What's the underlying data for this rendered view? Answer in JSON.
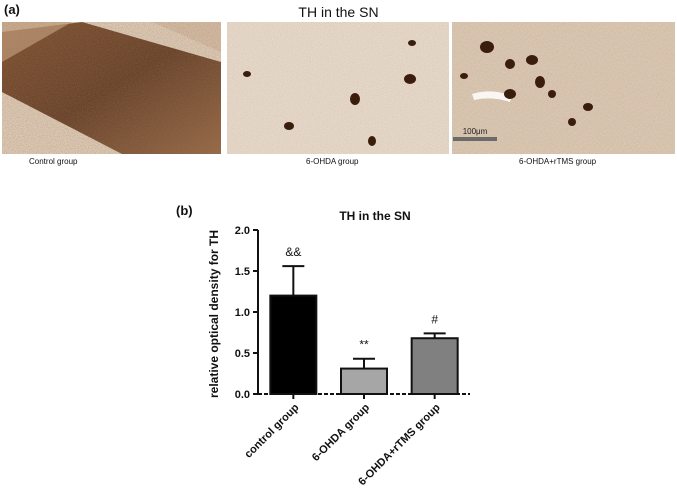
{
  "figure": {
    "panel_a_label": "(a)",
    "panel_b_label": "(b)",
    "panel_a_title": "TH in the SN",
    "images": [
      {
        "caption": "Control group",
        "staining": "dense"
      },
      {
        "caption": "6-OHDA group",
        "staining": "sparse"
      },
      {
        "caption": "6-OHDA+rTMS group",
        "staining": "moderate"
      }
    ],
    "scale_bar": "100μm"
  },
  "chart_data": {
    "type": "bar",
    "title": "TH in the SN",
    "xlabel": "",
    "ylabel": "relative optical density for TH",
    "categories": [
      "control group",
      "6-OHDA group",
      "6-OHDA+rTMS group"
    ],
    "values": [
      1.2,
      0.31,
      0.68
    ],
    "errors": [
      0.36,
      0.12,
      0.06
    ],
    "annotations": [
      "&&",
      "**",
      "#"
    ],
    "colors": [
      "#000000",
      "#a6a6a6",
      "#808080"
    ],
    "ylim": [
      0,
      2.0
    ],
    "yticks": [
      "0.0",
      "0.5",
      "1.0",
      "1.5",
      "2.0"
    ],
    "grid": false
  }
}
